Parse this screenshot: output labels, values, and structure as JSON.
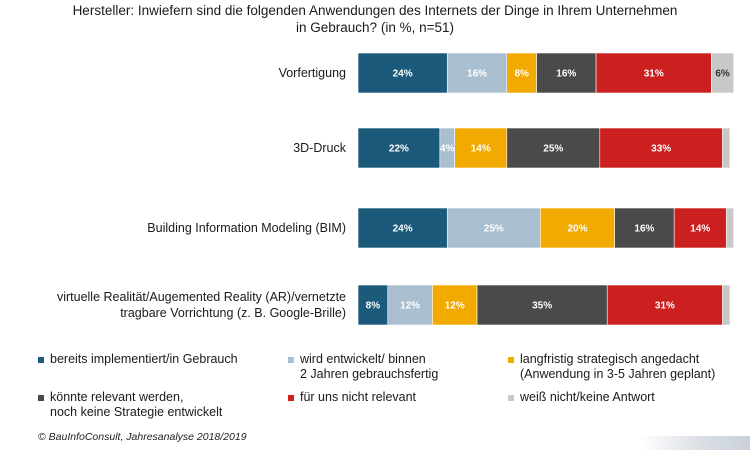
{
  "title": {
    "line1": "Hersteller: Inwiefern sind die folgenden Anwendungen des Internets der Dinge in Ihrem Unternehmen",
    "line2": "in Gebrauch? (in %, n=51)"
  },
  "source": "© BauInfoConsult, Jahresanalyse 2018/2019",
  "chart_data": {
    "type": "bar",
    "orientation": "horizontal",
    "stacked": true,
    "categories": [
      [
        "Vorfertigung"
      ],
      [
        "3D-Druck"
      ],
      [
        "Building Information Modeling (BIM)"
      ],
      [
        "virtuelle Realität/Augemented Reality (AR)/vernetzte",
        "tragbare Vorrichtung (z. B. Google-Brille)"
      ]
    ],
    "series": [
      {
        "name": "bereits implementiert/in Gebrauch",
        "color": "#1b5a7a",
        "label_color": "#ffffff",
        "values": [
          24,
          22,
          24,
          8
        ],
        "labels": [
          "24%",
          "22%",
          "24%",
          "8%"
        ]
      },
      {
        "name": "wird entwickelt/ binnen\n2 Jahren gebrauchsfertig",
        "color": "#a9bfd0",
        "label_color": "#ffffff",
        "values": [
          16,
          4,
          25,
          12
        ],
        "labels": [
          "16%",
          "4%",
          "25%",
          "12%"
        ]
      },
      {
        "name": "langfristig strategisch angedacht\n(Anwendung in 3-5 Jahren geplant)",
        "color": "#f2a900",
        "label_color": "#ffffff",
        "values": [
          8,
          14,
          20,
          12
        ],
        "labels": [
          "8%",
          "14%",
          "20%",
          "12%"
        ]
      },
      {
        "name": "könnte relevant werden,\nnoch keine Strategie entwickelt",
        "color": "#4a4a4a",
        "label_color": "#ffffff",
        "values": [
          16,
          25,
          16,
          35
        ],
        "labels": [
          "16%",
          "25%",
          "16%",
          "35%"
        ]
      },
      {
        "name": "für uns nicht relevant",
        "color": "#cc1f1f",
        "label_color": "#ffffff",
        "values": [
          31,
          33,
          14,
          31
        ],
        "labels": [
          "31%",
          "33%",
          "14%",
          "31%"
        ]
      },
      {
        "name": "weiß nicht/keine Antwort",
        "color": "#c8c8c8",
        "label_color": "#333333",
        "values": [
          6,
          2,
          2,
          2
        ],
        "labels": [
          "6%",
          "",
          "",
          ""
        ]
      }
    ],
    "xlim": [
      0,
      100
    ],
    "legend_position": "bottom",
    "grid": false
  }
}
